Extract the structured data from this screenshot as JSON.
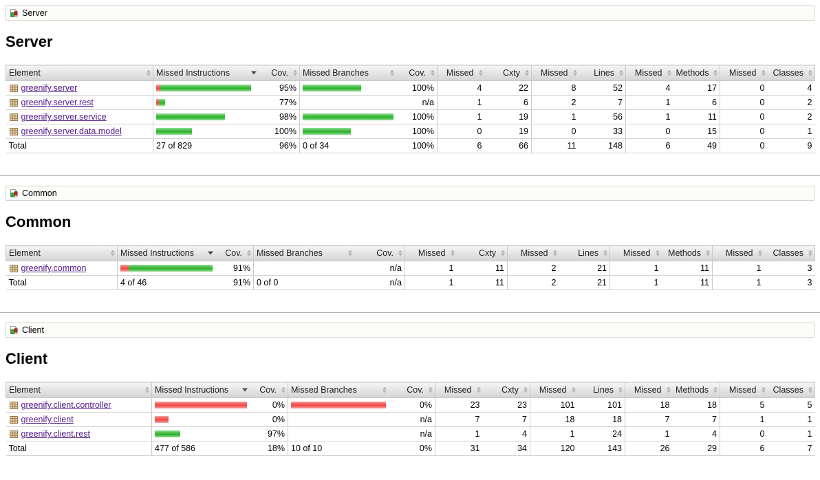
{
  "colors": {
    "link": "#551a8b",
    "bar_green": "#2fae2f",
    "bar_red": "#ef4848",
    "header_border": "#c5c5c5"
  },
  "columns": [
    {
      "label": "Element",
      "sorted": false
    },
    {
      "label": "Missed Instructions",
      "sorted": true,
      "sort_dir": "desc"
    },
    {
      "label": "Cov.",
      "sorted": false
    },
    {
      "label": "Missed Branches",
      "sorted": false
    },
    {
      "label": "Cov.",
      "sorted": false
    },
    {
      "label": "Missed",
      "sorted": false
    },
    {
      "label": "Cxty",
      "sorted": false
    },
    {
      "label": "Missed",
      "sorted": false
    },
    {
      "label": "Lines",
      "sorted": false
    },
    {
      "label": "Missed",
      "sorted": false
    },
    {
      "label": "Methods",
      "sorted": false
    },
    {
      "label": "Missed",
      "sorted": false
    },
    {
      "label": "Classes",
      "sorted": false
    }
  ],
  "sections": [
    {
      "breadcrumb": "Server",
      "title": "Server",
      "rows": [
        {
          "name": "greenify.server",
          "instr_cov": "95%",
          "branch_cov": "100%",
          "bars": {
            "instr_red": 6,
            "instr_green": 132,
            "branch_red": 0,
            "branch_green": 85
          },
          "missed_cxty": "4",
          "cxty": "22",
          "missed_lines": "8",
          "lines": "52",
          "missed_methods": "4",
          "methods": "17",
          "missed_classes": "0",
          "classes": "4"
        },
        {
          "name": "greenify.server.rest",
          "instr_cov": "77%",
          "branch_cov": "n/a",
          "bars": {
            "instr_red": 4,
            "instr_green": 9,
            "branch_red": 0,
            "branch_green": 0
          },
          "missed_cxty": "1",
          "cxty": "6",
          "missed_lines": "2",
          "lines": "7",
          "missed_methods": "1",
          "methods": "6",
          "missed_classes": "0",
          "classes": "2"
        },
        {
          "name": "greenify.server.service",
          "instr_cov": "98%",
          "branch_cov": "100%",
          "bars": {
            "instr_red": 0,
            "instr_green": 100,
            "branch_red": 0,
            "branch_green": 133
          },
          "missed_cxty": "1",
          "cxty": "19",
          "missed_lines": "1",
          "lines": "56",
          "missed_methods": "1",
          "methods": "11",
          "missed_classes": "0",
          "classes": "2"
        },
        {
          "name": "greenify.server.data.model",
          "instr_cov": "100%",
          "branch_cov": "100%",
          "bars": {
            "instr_red": 0,
            "instr_green": 52,
            "branch_red": 0,
            "branch_green": 70
          },
          "missed_cxty": "0",
          "cxty": "19",
          "missed_lines": "0",
          "lines": "33",
          "missed_methods": "0",
          "methods": "15",
          "missed_classes": "0",
          "classes": "1"
        }
      ],
      "total": {
        "label": "Total",
        "instr": "27 of 829",
        "instr_cov": "96%",
        "branch": "0 of 34",
        "branch_cov": "100%",
        "missed_cxty": "6",
        "cxty": "66",
        "missed_lines": "11",
        "lines": "148",
        "missed_methods": "6",
        "methods": "49",
        "missed_classes": "0",
        "classes": "9"
      }
    },
    {
      "breadcrumb": "Common",
      "title": "Common",
      "rows": [
        {
          "name": "greenify.common",
          "instr_cov": "91%",
          "branch_cov": "n/a",
          "bars": {
            "instr_red": 12,
            "instr_green": 125,
            "branch_red": 0,
            "branch_green": 0
          },
          "missed_cxty": "1",
          "cxty": "11",
          "missed_lines": "2",
          "lines": "21",
          "missed_methods": "1",
          "methods": "11",
          "missed_classes": "1",
          "classes": "3"
        }
      ],
      "total": {
        "label": "Total",
        "instr": "4 of 46",
        "instr_cov": "91%",
        "branch": "0 of 0",
        "branch_cov": "n/a",
        "missed_cxty": "1",
        "cxty": "11",
        "missed_lines": "2",
        "lines": "21",
        "missed_methods": "1",
        "methods": "11",
        "missed_classes": "1",
        "classes": "3"
      }
    },
    {
      "breadcrumb": "Client",
      "title": "Client",
      "rows": [
        {
          "name": "greenify.client.controller",
          "instr_cov": "0%",
          "branch_cov": "0%",
          "bars": {
            "instr_red": 142,
            "instr_green": 0,
            "branch_red": 142,
            "branch_green": 0
          },
          "missed_cxty": "23",
          "cxty": "23",
          "missed_lines": "101",
          "lines": "101",
          "missed_methods": "18",
          "methods": "18",
          "missed_classes": "5",
          "classes": "5"
        },
        {
          "name": "greenify.client",
          "instr_cov": "0%",
          "branch_cov": "n/a",
          "bars": {
            "instr_red": 20,
            "instr_green": 0,
            "branch_red": 0,
            "branch_green": 0
          },
          "missed_cxty": "7",
          "cxty": "7",
          "missed_lines": "18",
          "lines": "18",
          "missed_methods": "7",
          "methods": "7",
          "missed_classes": "1",
          "classes": "1"
        },
        {
          "name": "greenify.client.rest",
          "instr_cov": "97%",
          "branch_cov": "n/a",
          "bars": {
            "instr_red": 0,
            "instr_green": 37,
            "branch_red": 0,
            "branch_green": 0
          },
          "missed_cxty": "1",
          "cxty": "4",
          "missed_lines": "1",
          "lines": "24",
          "missed_methods": "1",
          "methods": "4",
          "missed_classes": "0",
          "classes": "1"
        }
      ],
      "total": {
        "label": "Total",
        "instr": "477 of 586",
        "instr_cov": "18%",
        "branch": "10 of 10",
        "branch_cov": "0%",
        "missed_cxty": "31",
        "cxty": "34",
        "missed_lines": "120",
        "lines": "143",
        "missed_methods": "26",
        "methods": "29",
        "missed_classes": "6",
        "classes": "7"
      }
    }
  ]
}
